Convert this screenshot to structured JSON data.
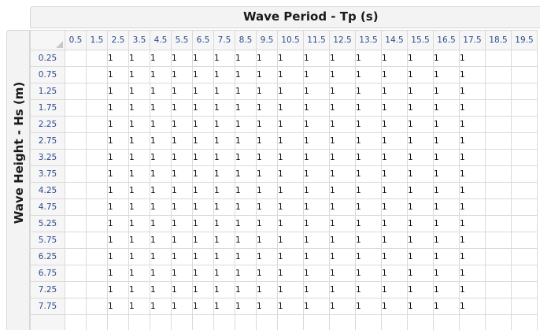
{
  "x_axis_title": "Wave Period - Tp (s)",
  "y_axis_title": "Wave Height - Hs (m)",
  "columns": [
    "0.5",
    "1.5",
    "2.5",
    "3.5",
    "4.5",
    "5.5",
    "6.5",
    "7.5",
    "8.5",
    "9.5",
    "10.5",
    "11.5",
    "12.5",
    "13.5",
    "14.5",
    "15.5",
    "16.5",
    "17.5",
    "18.5",
    "19.5"
  ],
  "rows": [
    {
      "label": "0.25",
      "cells": [
        "",
        "",
        "1",
        "1",
        "1",
        "1",
        "1",
        "1",
        "1",
        "1",
        "1",
        "1",
        "1",
        "1",
        "1",
        "1",
        "1",
        "1",
        "",
        ""
      ]
    },
    {
      "label": "0.75",
      "cells": [
        "",
        "",
        "1",
        "1",
        "1",
        "1",
        "1",
        "1",
        "1",
        "1",
        "1",
        "1",
        "1",
        "1",
        "1",
        "1",
        "1",
        "1",
        "",
        ""
      ]
    },
    {
      "label": "1.25",
      "cells": [
        "",
        "",
        "1",
        "1",
        "1",
        "1",
        "1",
        "1",
        "1",
        "1",
        "1",
        "1",
        "1",
        "1",
        "1",
        "1",
        "1",
        "1",
        "",
        ""
      ]
    },
    {
      "label": "1.75",
      "cells": [
        "",
        "",
        "1",
        "1",
        "1",
        "1",
        "1",
        "1",
        "1",
        "1",
        "1",
        "1",
        "1",
        "1",
        "1",
        "1",
        "1",
        "1",
        "",
        ""
      ]
    },
    {
      "label": "2.25",
      "cells": [
        "",
        "",
        "1",
        "1",
        "1",
        "1",
        "1",
        "1",
        "1",
        "1",
        "1",
        "1",
        "1",
        "1",
        "1",
        "1",
        "1",
        "1",
        "",
        ""
      ]
    },
    {
      "label": "2.75",
      "cells": [
        "",
        "",
        "1",
        "1",
        "1",
        "1",
        "1",
        "1",
        "1",
        "1",
        "1",
        "1",
        "1",
        "1",
        "1",
        "1",
        "1",
        "1",
        "",
        ""
      ]
    },
    {
      "label": "3.25",
      "cells": [
        "",
        "",
        "1",
        "1",
        "1",
        "1",
        "1",
        "1",
        "1",
        "1",
        "1",
        "1",
        "1",
        "1",
        "1",
        "1",
        "1",
        "1",
        "",
        ""
      ]
    },
    {
      "label": "3.75",
      "cells": [
        "",
        "",
        "1",
        "1",
        "1",
        "1",
        "1",
        "1",
        "1",
        "1",
        "1",
        "1",
        "1",
        "1",
        "1",
        "1",
        "1",
        "1",
        "",
        ""
      ]
    },
    {
      "label": "4.25",
      "cells": [
        "",
        "",
        "1",
        "1",
        "1",
        "1",
        "1",
        "1",
        "1",
        "1",
        "1",
        "1",
        "1",
        "1",
        "1",
        "1",
        "1",
        "1",
        "",
        ""
      ]
    },
    {
      "label": "4.75",
      "cells": [
        "",
        "",
        "1",
        "1",
        "1",
        "1",
        "1",
        "1",
        "1",
        "1",
        "1",
        "1",
        "1",
        "1",
        "1",
        "1",
        "1",
        "1",
        "",
        ""
      ]
    },
    {
      "label": "5.25",
      "cells": [
        "",
        "",
        "1",
        "1",
        "1",
        "1",
        "1",
        "1",
        "1",
        "1",
        "1",
        "1",
        "1",
        "1",
        "1",
        "1",
        "1",
        "1",
        "",
        ""
      ]
    },
    {
      "label": "5.75",
      "cells": [
        "",
        "",
        "1",
        "1",
        "1",
        "1",
        "1",
        "1",
        "1",
        "1",
        "1",
        "1",
        "1",
        "1",
        "1",
        "1",
        "1",
        "1",
        "",
        ""
      ]
    },
    {
      "label": "6.25",
      "cells": [
        "",
        "",
        "1",
        "1",
        "1",
        "1",
        "1",
        "1",
        "1",
        "1",
        "1",
        "1",
        "1",
        "1",
        "1",
        "1",
        "1",
        "1",
        "",
        ""
      ]
    },
    {
      "label": "6.75",
      "cells": [
        "",
        "",
        "1",
        "1",
        "1",
        "1",
        "1",
        "1",
        "1",
        "1",
        "1",
        "1",
        "1",
        "1",
        "1",
        "1",
        "1",
        "1",
        "",
        ""
      ]
    },
    {
      "label": "7.25",
      "cells": [
        "",
        "",
        "1",
        "1",
        "1",
        "1",
        "1",
        "1",
        "1",
        "1",
        "1",
        "1",
        "1",
        "1",
        "1",
        "1",
        "1",
        "1",
        "",
        ""
      ]
    },
    {
      "label": "7.75",
      "cells": [
        "",
        "",
        "1",
        "1",
        "1",
        "1",
        "1",
        "1",
        "1",
        "1",
        "1",
        "1",
        "1",
        "1",
        "1",
        "1",
        "1",
        "1",
        "",
        ""
      ]
    },
    {
      "label": "",
      "cells": [
        "",
        "",
        "",
        "",
        "",
        "",
        "",
        "",
        "",
        "",
        "",
        "",
        "",
        "",
        "",
        "",
        "",
        "",
        "",
        ""
      ]
    }
  ]
}
